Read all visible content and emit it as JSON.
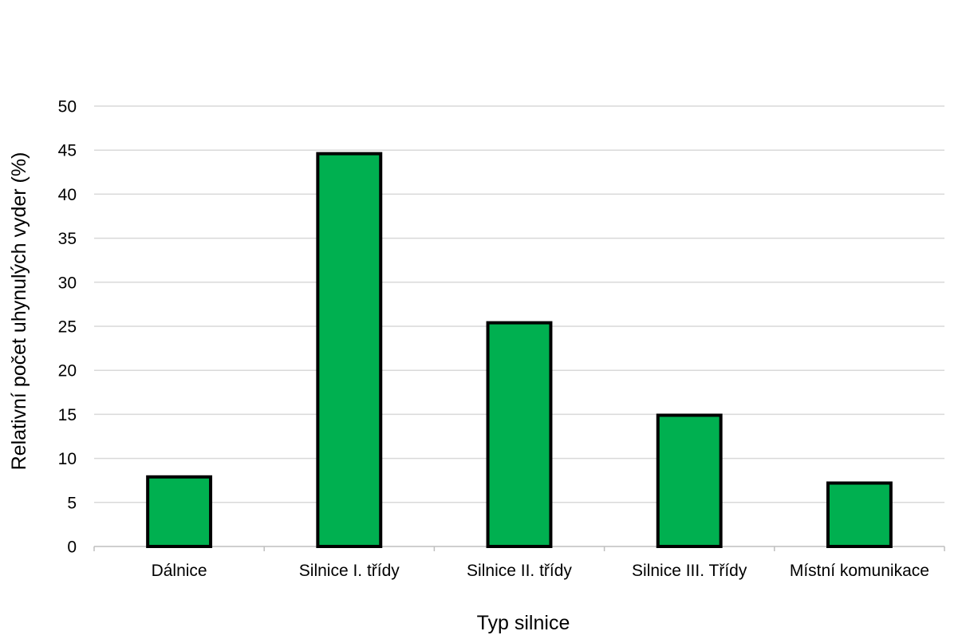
{
  "chart_data": {
    "type": "bar",
    "categories": [
      "Dálnice",
      "Silnice I. třídy",
      "Silnice II. třídy",
      "Silnice III. Třídy",
      "Místní komunikace"
    ],
    "values": [
      7.9,
      44.6,
      25.4,
      14.9,
      7.2
    ],
    "xlabel": "Typ silnice",
    "ylabel": "Relativní počet uhynulých vyder (%)",
    "ylim": [
      0,
      50
    ],
    "yticks": [
      0,
      5,
      10,
      15,
      20,
      25,
      30,
      35,
      40,
      45,
      50
    ],
    "grid": true,
    "legend": "none",
    "bar_color": "#00b050",
    "bar_outline_color": "#000000"
  }
}
